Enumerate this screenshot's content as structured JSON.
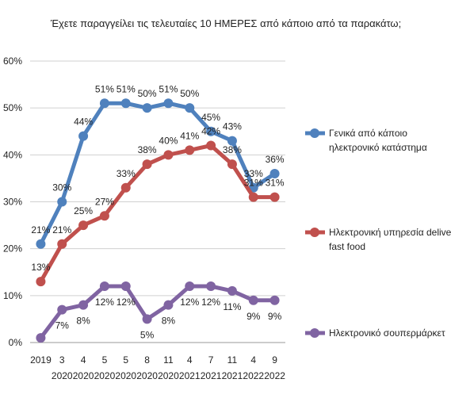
{
  "chart_data": {
    "type": "line",
    "title": "Έχετε παραγγείλει τις τελευταίες 10 ΗΜΕΡΕΣ από κάποιο από τα παρακάτω;",
    "categories": [
      [
        "2019"
      ],
      [
        "3",
        "2020"
      ],
      [
        "4",
        "2020"
      ],
      [
        "5",
        "2020"
      ],
      [
        "5",
        "2020"
      ],
      [
        "8",
        "2020"
      ],
      [
        "11",
        "2020"
      ],
      [
        "4",
        "2021"
      ],
      [
        "7",
        "2021"
      ],
      [
        "11",
        "2021"
      ],
      [
        "4",
        "2022"
      ],
      [
        "9",
        "2022"
      ]
    ],
    "series": [
      {
        "name": "Γενικά από κάποιο ηλεκτρονικό κατάστημα",
        "color": "#4f81bd",
        "values": [
          21,
          30,
          44,
          51,
          51,
          50,
          51,
          50,
          45,
          43,
          33,
          36
        ],
        "value_labels": [
          "21%",
          "30%",
          "44%",
          "51%",
          "51%",
          "50%",
          "51%",
          "50%",
          "45%",
          "43%",
          "33%",
          "36%"
        ]
      },
      {
        "name": "Ηλεκτρονική υπηρεσία delivery fast food",
        "color": "#c0504d",
        "values": [
          13,
          21,
          25,
          27,
          33,
          38,
          40,
          41,
          42,
          38,
          31,
          31
        ],
        "value_labels": [
          "13%",
          "21%",
          "25%",
          "27%",
          "33%",
          "38%",
          "40%",
          "41%",
          "42%",
          "38%",
          "31%",
          "31%"
        ]
      },
      {
        "name": "Ηλεκτρονικό σουπερμάρκετ",
        "color": "#8064a2",
        "values": [
          1,
          7,
          8,
          12,
          12,
          5,
          8,
          12,
          12,
          11,
          9,
          9
        ],
        "value_labels": [
          null,
          "7%",
          "8%",
          "12%",
          "12%",
          "5%",
          "8%",
          "12%",
          "12%",
          "11%",
          "9%",
          "9%"
        ]
      }
    ],
    "ylim": [
      0,
      60
    ],
    "yticks": [
      {
        "value": 0,
        "label": "0%"
      },
      {
        "value": 10,
        "label": "10%"
      },
      {
        "value": 20,
        "label": "20%"
      },
      {
        "value": 30,
        "label": "30%"
      },
      {
        "value": 40,
        "label": "40%"
      },
      {
        "value": 50,
        "label": "50%"
      },
      {
        "value": 60,
        "label": "60%"
      }
    ],
    "grid": true
  }
}
